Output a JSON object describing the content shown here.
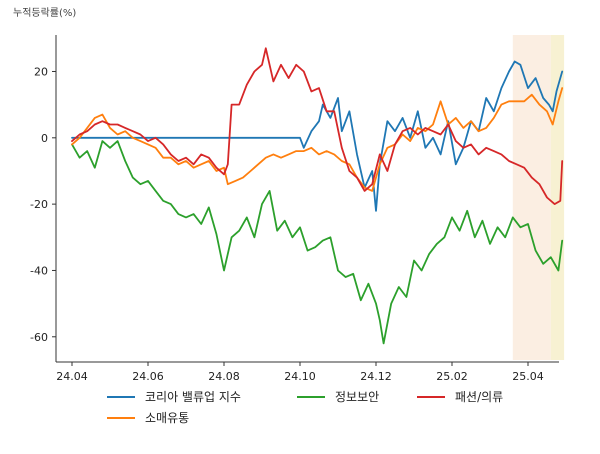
{
  "chart_data": {
    "type": "line",
    "unit_label": "누적등락률(%)",
    "xlabel": "",
    "ylabel": "",
    "x_range": [
      0,
      13.1
    ],
    "ylim": [
      -67,
      31
    ],
    "y_ticks": [
      {
        "value": 20,
        "label": "20"
      },
      {
        "value": 0,
        "label": "0"
      },
      {
        "value": -20,
        "label": "-20"
      },
      {
        "value": -40,
        "label": "-40"
      },
      {
        "value": -60,
        "label": "-60"
      }
    ],
    "x_ticks": [
      {
        "value": 0,
        "label": "24.04"
      },
      {
        "value": 2,
        "label": "24.06"
      },
      {
        "value": 4,
        "label": "24.08"
      },
      {
        "value": 6,
        "label": "24.10"
      },
      {
        "value": 8,
        "label": "24.12"
      },
      {
        "value": 10,
        "label": "25.02"
      },
      {
        "value": 12,
        "label": "25.04"
      }
    ],
    "highlight_bands": [
      {
        "from": 11.6,
        "to": 12.6,
        "color": "#fbeee2"
      },
      {
        "from": 12.6,
        "to": 12.95,
        "color": "#f7f1d2"
      }
    ],
    "legend_placement": "bottom",
    "series": [
      {
        "name": "코리아 밸류업 지수",
        "color": "#1f77b4",
        "points": [
          [
            0,
            0
          ],
          [
            6,
            0
          ],
          [
            6.1,
            -3
          ],
          [
            6.3,
            2
          ],
          [
            6.5,
            5
          ],
          [
            6.6,
            10
          ],
          [
            6.8,
            6
          ],
          [
            7.0,
            12
          ],
          [
            7.1,
            2
          ],
          [
            7.3,
            8
          ],
          [
            7.5,
            -5
          ],
          [
            7.7,
            -15
          ],
          [
            7.9,
            -10
          ],
          [
            8.0,
            -22
          ],
          [
            8.1,
            -8
          ],
          [
            8.3,
            5
          ],
          [
            8.5,
            2
          ],
          [
            8.7,
            6
          ],
          [
            8.9,
            0
          ],
          [
            9.1,
            8
          ],
          [
            9.3,
            -3
          ],
          [
            9.5,
            0
          ],
          [
            9.7,
            -5
          ],
          [
            9.9,
            5
          ],
          [
            10.1,
            -8
          ],
          [
            10.3,
            -3
          ],
          [
            10.5,
            5
          ],
          [
            10.7,
            2
          ],
          [
            10.9,
            12
          ],
          [
            11.1,
            8
          ],
          [
            11.3,
            15
          ],
          [
            11.5,
            20
          ],
          [
            11.65,
            23
          ],
          [
            11.8,
            22
          ],
          [
            12.0,
            15
          ],
          [
            12.2,
            18
          ],
          [
            12.4,
            12
          ],
          [
            12.55,
            10
          ],
          [
            12.65,
            8
          ],
          [
            12.75,
            14
          ],
          [
            12.9,
            20
          ]
        ]
      },
      {
        "name": "정보보안",
        "color": "#2ca02c",
        "points": [
          [
            0,
            -2
          ],
          [
            0.2,
            -6
          ],
          [
            0.4,
            -4
          ],
          [
            0.6,
            -9
          ],
          [
            0.8,
            -1
          ],
          [
            1.0,
            -3
          ],
          [
            1.2,
            -1
          ],
          [
            1.4,
            -7
          ],
          [
            1.6,
            -12
          ],
          [
            1.8,
            -14
          ],
          [
            2.0,
            -13
          ],
          [
            2.2,
            -16
          ],
          [
            2.4,
            -19
          ],
          [
            2.6,
            -20
          ],
          [
            2.8,
            -23
          ],
          [
            3.0,
            -24
          ],
          [
            3.2,
            -23
          ],
          [
            3.4,
            -26
          ],
          [
            3.6,
            -21
          ],
          [
            3.8,
            -29
          ],
          [
            4.0,
            -40
          ],
          [
            4.2,
            -30
          ],
          [
            4.4,
            -28
          ],
          [
            4.6,
            -24
          ],
          [
            4.8,
            -30
          ],
          [
            5.0,
            -20
          ],
          [
            5.2,
            -16
          ],
          [
            5.4,
            -28
          ],
          [
            5.6,
            -25
          ],
          [
            5.8,
            -30
          ],
          [
            6.0,
            -27
          ],
          [
            6.2,
            -34
          ],
          [
            6.4,
            -33
          ],
          [
            6.6,
            -31
          ],
          [
            6.8,
            -30
          ],
          [
            7.0,
            -40
          ],
          [
            7.2,
            -42
          ],
          [
            7.4,
            -41
          ],
          [
            7.6,
            -49
          ],
          [
            7.8,
            -44
          ],
          [
            8.0,
            -50
          ],
          [
            8.1,
            -55
          ],
          [
            8.2,
            -62
          ],
          [
            8.4,
            -50
          ],
          [
            8.6,
            -45
          ],
          [
            8.8,
            -48
          ],
          [
            9.0,
            -37
          ],
          [
            9.2,
            -40
          ],
          [
            9.4,
            -35
          ],
          [
            9.6,
            -32
          ],
          [
            9.8,
            -30
          ],
          [
            10.0,
            -24
          ],
          [
            10.2,
            -28
          ],
          [
            10.4,
            -22
          ],
          [
            10.6,
            -30
          ],
          [
            10.8,
            -25
          ],
          [
            11.0,
            -32
          ],
          [
            11.2,
            -27
          ],
          [
            11.4,
            -30
          ],
          [
            11.6,
            -24
          ],
          [
            11.8,
            -27
          ],
          [
            12.0,
            -26
          ],
          [
            12.2,
            -34
          ],
          [
            12.4,
            -38
          ],
          [
            12.6,
            -36
          ],
          [
            12.8,
            -40
          ],
          [
            12.9,
            -31
          ]
        ]
      },
      {
        "name": "소매유통",
        "color": "#ff7f0e",
        "points": [
          [
            0,
            -2
          ],
          [
            0.2,
            0
          ],
          [
            0.4,
            3
          ],
          [
            0.6,
            6
          ],
          [
            0.8,
            7
          ],
          [
            1.0,
            3
          ],
          [
            1.2,
            1
          ],
          [
            1.4,
            2
          ],
          [
            1.6,
            0
          ],
          [
            1.8,
            -1
          ],
          [
            2.0,
            -2
          ],
          [
            2.2,
            -3
          ],
          [
            2.4,
            -6
          ],
          [
            2.6,
            -6
          ],
          [
            2.8,
            -8
          ],
          [
            3.0,
            -7
          ],
          [
            3.2,
            -9
          ],
          [
            3.4,
            -8
          ],
          [
            3.6,
            -7
          ],
          [
            3.8,
            -10
          ],
          [
            4.0,
            -9
          ],
          [
            4.1,
            -14
          ],
          [
            4.3,
            -13
          ],
          [
            4.5,
            -12
          ],
          [
            4.7,
            -10
          ],
          [
            4.9,
            -8
          ],
          [
            5.1,
            -6
          ],
          [
            5.3,
            -5
          ],
          [
            5.5,
            -6
          ],
          [
            5.7,
            -5
          ],
          [
            5.9,
            -4
          ],
          [
            6.1,
            -4
          ],
          [
            6.3,
            -3
          ],
          [
            6.5,
            -5
          ],
          [
            6.7,
            -4
          ],
          [
            6.9,
            -5
          ],
          [
            7.1,
            -7
          ],
          [
            7.3,
            -8
          ],
          [
            7.5,
            -12
          ],
          [
            7.7,
            -15
          ],
          [
            7.9,
            -16
          ],
          [
            8.1,
            -8
          ],
          [
            8.3,
            -3
          ],
          [
            8.5,
            -2
          ],
          [
            8.7,
            1
          ],
          [
            8.9,
            -1
          ],
          [
            9.1,
            3
          ],
          [
            9.3,
            2
          ],
          [
            9.5,
            4
          ],
          [
            9.7,
            11
          ],
          [
            9.9,
            4
          ],
          [
            10.1,
            6
          ],
          [
            10.3,
            3
          ],
          [
            10.5,
            5
          ],
          [
            10.7,
            2
          ],
          [
            10.9,
            3
          ],
          [
            11.1,
            6
          ],
          [
            11.3,
            10
          ],
          [
            11.5,
            11
          ],
          [
            11.7,
            11
          ],
          [
            11.9,
            11
          ],
          [
            12.1,
            13
          ],
          [
            12.3,
            10
          ],
          [
            12.5,
            8
          ],
          [
            12.65,
            4
          ],
          [
            12.8,
            11
          ],
          [
            12.9,
            15
          ]
        ]
      },
      {
        "name": "패션/의류",
        "color": "#d62728",
        "points": [
          [
            0,
            -1
          ],
          [
            0.2,
            1
          ],
          [
            0.4,
            2
          ],
          [
            0.6,
            4
          ],
          [
            0.8,
            5
          ],
          [
            1.0,
            4
          ],
          [
            1.2,
            4
          ],
          [
            1.4,
            3
          ],
          [
            1.6,
            2
          ],
          [
            1.8,
            1
          ],
          [
            2.0,
            -1
          ],
          [
            2.2,
            0
          ],
          [
            2.4,
            -2
          ],
          [
            2.6,
            -5
          ],
          [
            2.8,
            -7
          ],
          [
            3.0,
            -6
          ],
          [
            3.2,
            -8
          ],
          [
            3.4,
            -5
          ],
          [
            3.6,
            -6
          ],
          [
            3.8,
            -9
          ],
          [
            4.0,
            -11
          ],
          [
            4.1,
            -8
          ],
          [
            4.2,
            10
          ],
          [
            4.4,
            10
          ],
          [
            4.6,
            16
          ],
          [
            4.8,
            20
          ],
          [
            5.0,
            22
          ],
          [
            5.1,
            27
          ],
          [
            5.3,
            17
          ],
          [
            5.5,
            22
          ],
          [
            5.7,
            18
          ],
          [
            5.9,
            22
          ],
          [
            6.1,
            20
          ],
          [
            6.3,
            14
          ],
          [
            6.5,
            15
          ],
          [
            6.7,
            8
          ],
          [
            6.9,
            8
          ],
          [
            7.1,
            -3
          ],
          [
            7.3,
            -10
          ],
          [
            7.5,
            -12
          ],
          [
            7.7,
            -16
          ],
          [
            7.9,
            -14
          ],
          [
            8.1,
            -5
          ],
          [
            8.3,
            -10
          ],
          [
            8.5,
            -2
          ],
          [
            8.7,
            2
          ],
          [
            8.9,
            3
          ],
          [
            9.1,
            1
          ],
          [
            9.3,
            3
          ],
          [
            9.5,
            2
          ],
          [
            9.7,
            1
          ],
          [
            9.9,
            4
          ],
          [
            10.1,
            -1
          ],
          [
            10.3,
            -3
          ],
          [
            10.5,
            -2
          ],
          [
            10.7,
            -5
          ],
          [
            10.9,
            -3
          ],
          [
            11.1,
            -4
          ],
          [
            11.3,
            -5
          ],
          [
            11.5,
            -7
          ],
          [
            11.7,
            -8
          ],
          [
            11.9,
            -9
          ],
          [
            12.1,
            -12
          ],
          [
            12.3,
            -14
          ],
          [
            12.5,
            -18
          ],
          [
            12.7,
            -20
          ],
          [
            12.85,
            -19
          ],
          [
            12.9,
            -7
          ]
        ]
      }
    ]
  }
}
